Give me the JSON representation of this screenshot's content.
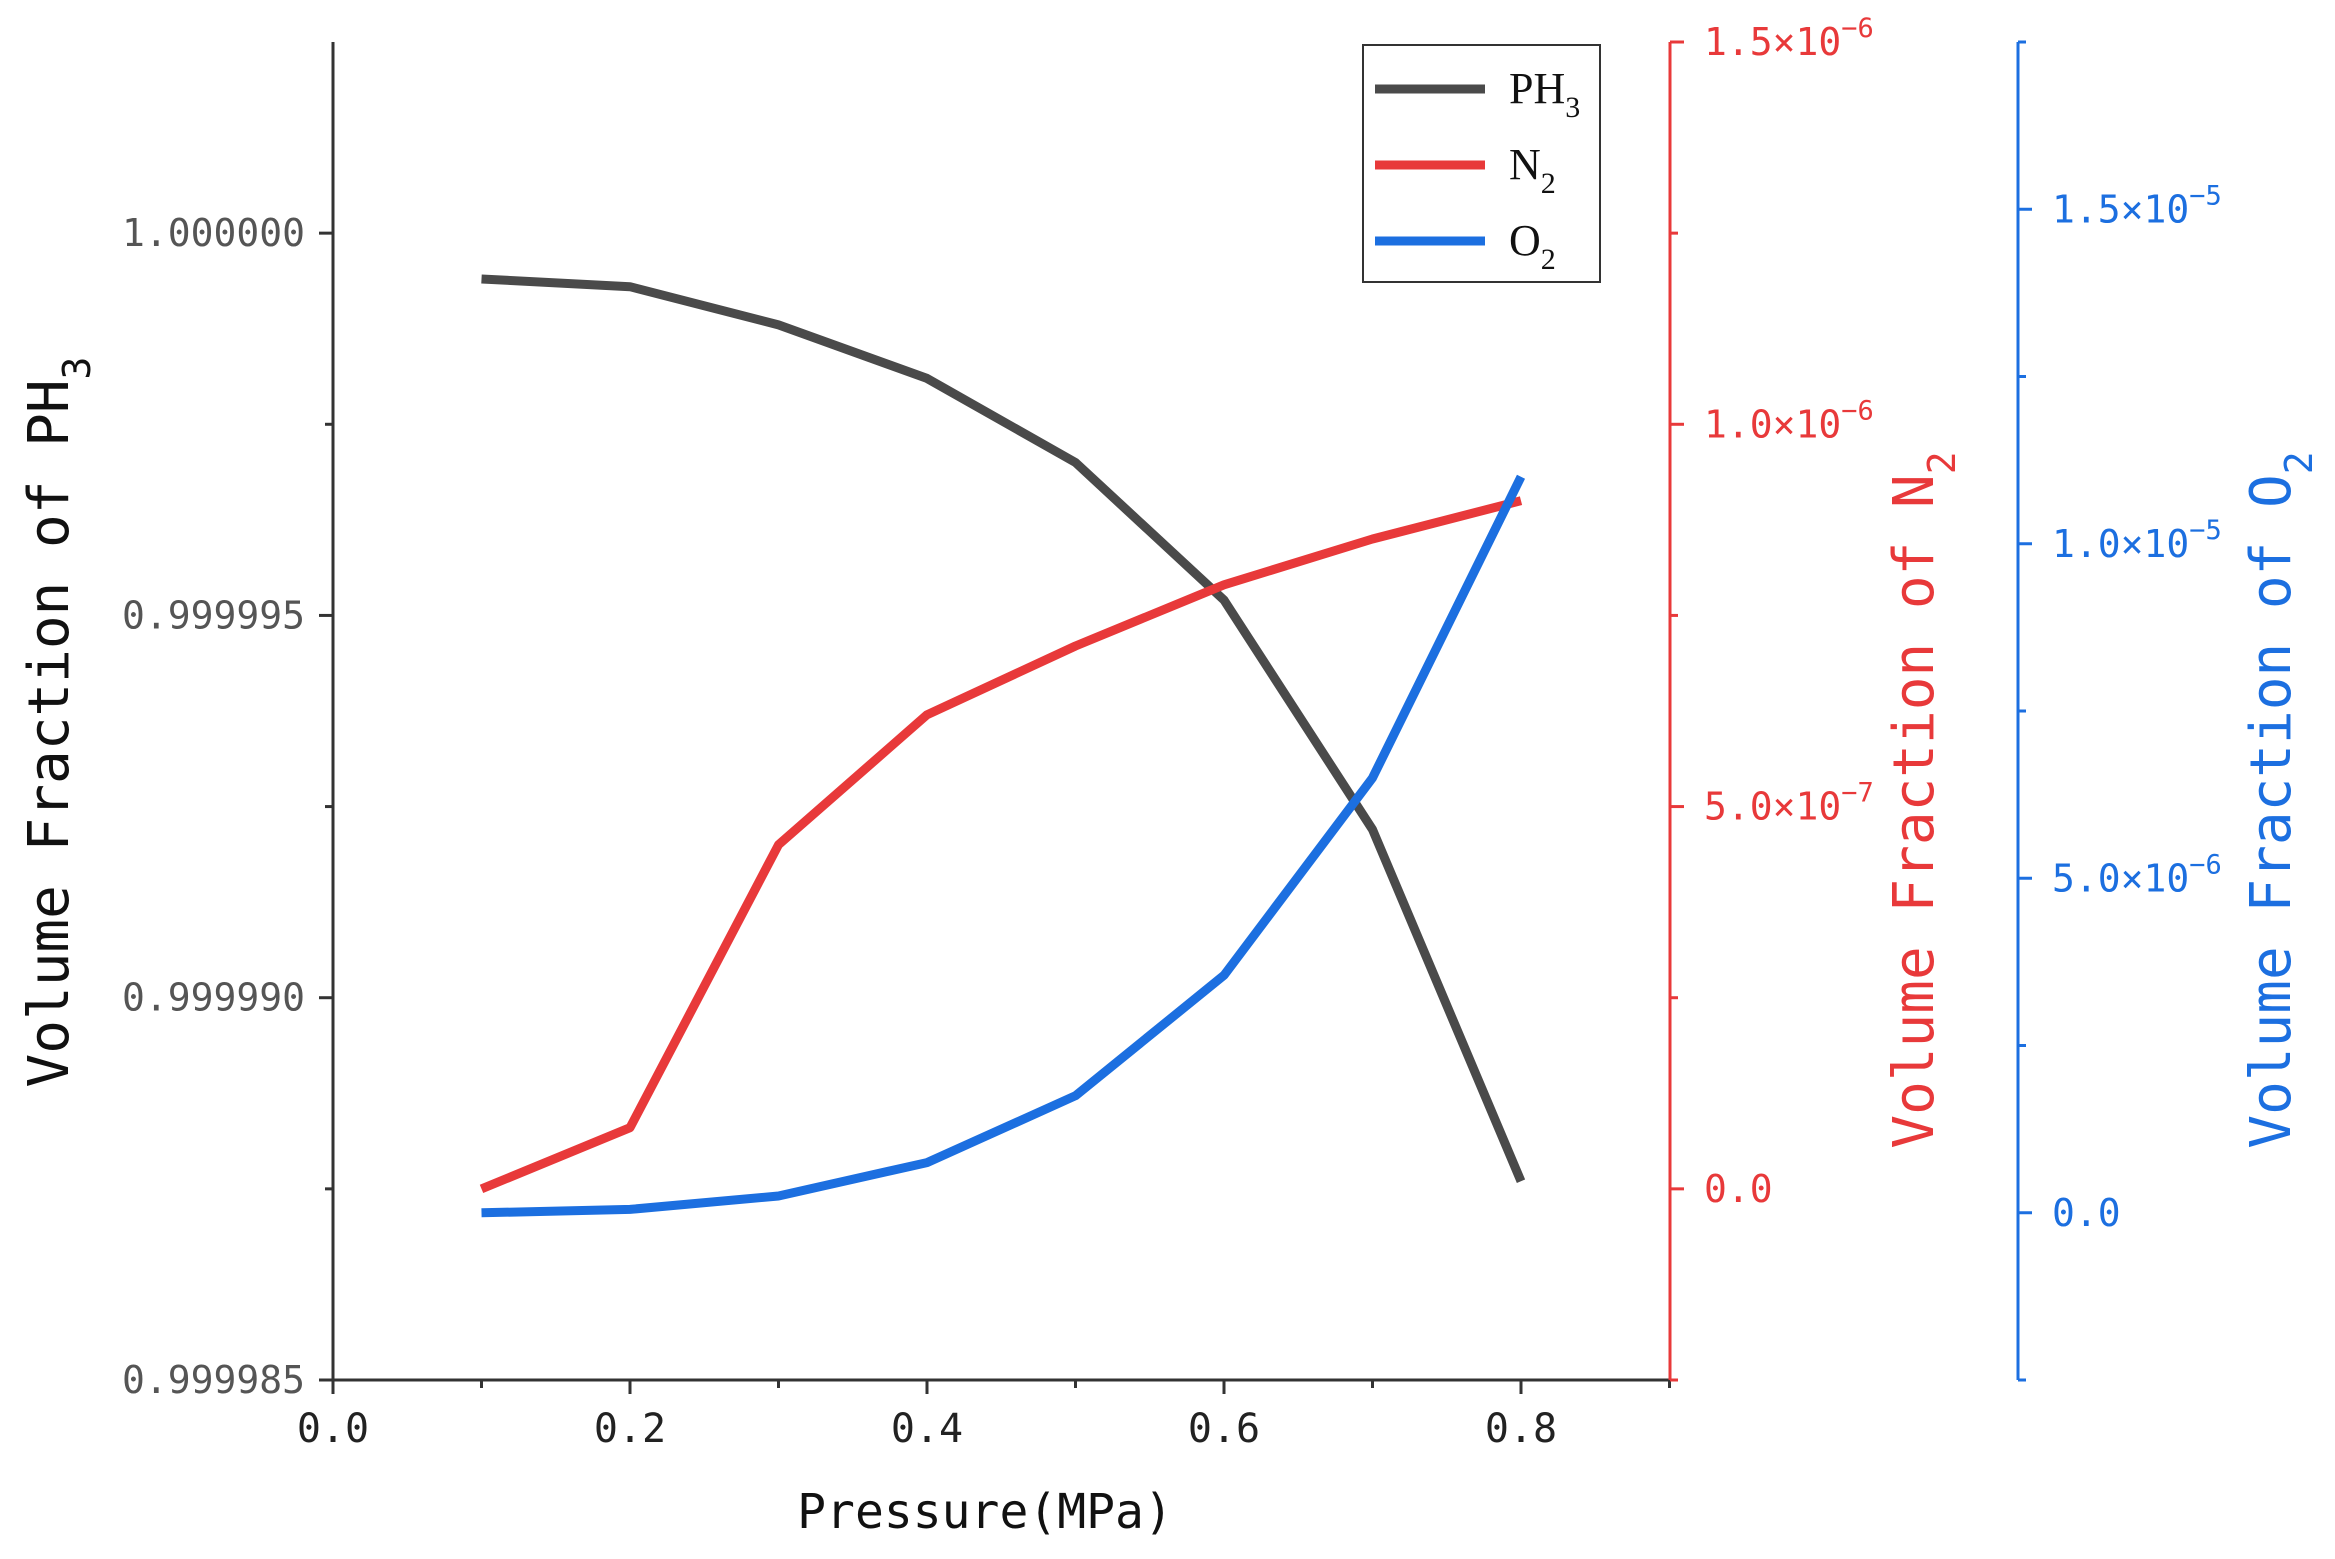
{
  "chart_data": {
    "type": "line",
    "xlabel": "Pressure(MPa)",
    "xlim": [
      0,
      0.9
    ],
    "xticks": [
      "0.0",
      "0.2",
      "0.4",
      "0.6",
      "0.8"
    ],
    "x": [
      0.1,
      0.2,
      0.3,
      0.4,
      0.5,
      0.6,
      0.7,
      0.8
    ],
    "colors": {
      "ph3": "#4a4a4a",
      "n2": "#e8393a",
      "o2": "#1c6fe0"
    },
    "axes": {
      "left": {
        "label": "Volume Fraction of PH",
        "label_sub": "3",
        "ylim": [
          0.999985,
          1.0000025
        ],
        "ticks": [
          1.0,
          0.999995,
          0.99999,
          0.999985
        ],
        "tick_labels": [
          "1.000000",
          "0.999995",
          "0.999990",
          "0.999985"
        ]
      },
      "right1": {
        "label": "Volume Fraction of N",
        "label_sub": "2",
        "ylim": [
          -2.5e-07,
          1.5e-06
        ],
        "ticks": [
          1.5e-06,
          1e-06,
          5e-07,
          0.0
        ],
        "tick_labels": [
          {
            "mant": "1.5×10",
            "exp": "−6"
          },
          {
            "mant": "1.0×10",
            "exp": "−6"
          },
          {
            "mant": "5.0×10",
            "exp": "−7"
          },
          {
            "mant": "0.0",
            "exp": ""
          }
        ]
      },
      "right2": {
        "label": "Volume Fraction of O",
        "label_sub": "2",
        "ylim": [
          -2.5e-06,
          1.75e-05
        ],
        "ticks": [
          1.5e-05,
          1e-05,
          5e-06,
          0.0
        ],
        "tick_labels": [
          {
            "mant": "1.5×10",
            "exp": "−5"
          },
          {
            "mant": "1.0×10",
            "exp": "−5"
          },
          {
            "mant": "5.0×10",
            "exp": "−6"
          },
          {
            "mant": "0.0",
            "exp": ""
          }
        ]
      }
    },
    "series": [
      {
        "name": "PH",
        "sub": "3",
        "axis": "left",
        "color_key": "ph3",
        "values": [
          0.9999994,
          0.9999993,
          0.9999988,
          0.9999981,
          0.999997,
          0.9999952,
          0.9999922,
          0.9999876
        ]
      },
      {
        "name": "N",
        "sub": "2",
        "axis": "right1",
        "color_key": "n2",
        "values": [
          0.0,
          8e-08,
          4.5e-07,
          6.2e-07,
          7.1e-07,
          7.9e-07,
          8.5e-07,
          9e-07
        ]
      },
      {
        "name": "O",
        "sub": "2",
        "axis": "right2",
        "color_key": "o2",
        "values": [
          0.0,
          5e-08,
          2.5e-07,
          7.5e-07,
          1.75e-06,
          3.55e-06,
          6.5e-06,
          1.1e-05
        ]
      }
    ],
    "legend_position": "top-right"
  }
}
